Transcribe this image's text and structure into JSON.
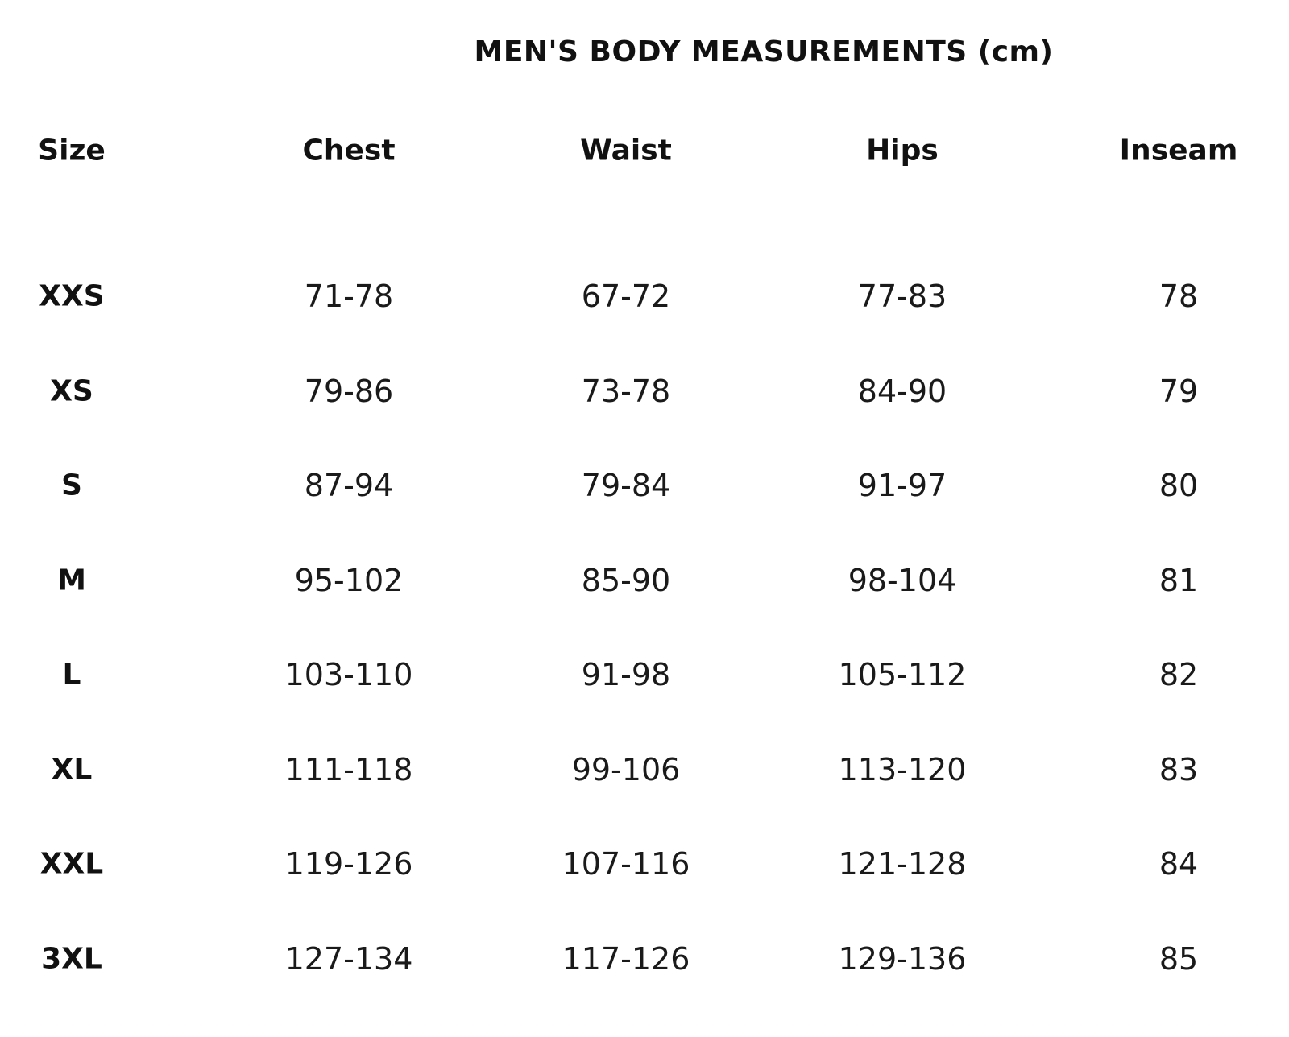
{
  "title": "MEN'S BODY MEASUREMENTS (cm)",
  "headers": [
    "Size",
    "Chest",
    "Waist",
    "Hips",
    "Inseam"
  ],
  "rows": [
    [
      "XXS",
      "71-78",
      "67-72",
      "77-83",
      "78"
    ],
    [
      "XS",
      "79-86",
      "73-78",
      "84-90",
      "79"
    ],
    [
      "S",
      "87-94",
      "79-84",
      "91-97",
      "80"
    ],
    [
      "M",
      "95-102",
      "85-90",
      "98-104",
      "81"
    ],
    [
      "L",
      "103-110",
      "91-98",
      "105-112",
      "82"
    ],
    [
      "XL",
      "111-118",
      "99-106",
      "113-120",
      "83"
    ],
    [
      "XXL",
      "119-126",
      "107-116",
      "121-128",
      "84"
    ],
    [
      "3XL",
      "127-134",
      "117-126",
      "129-136",
      "85"
    ]
  ]
}
